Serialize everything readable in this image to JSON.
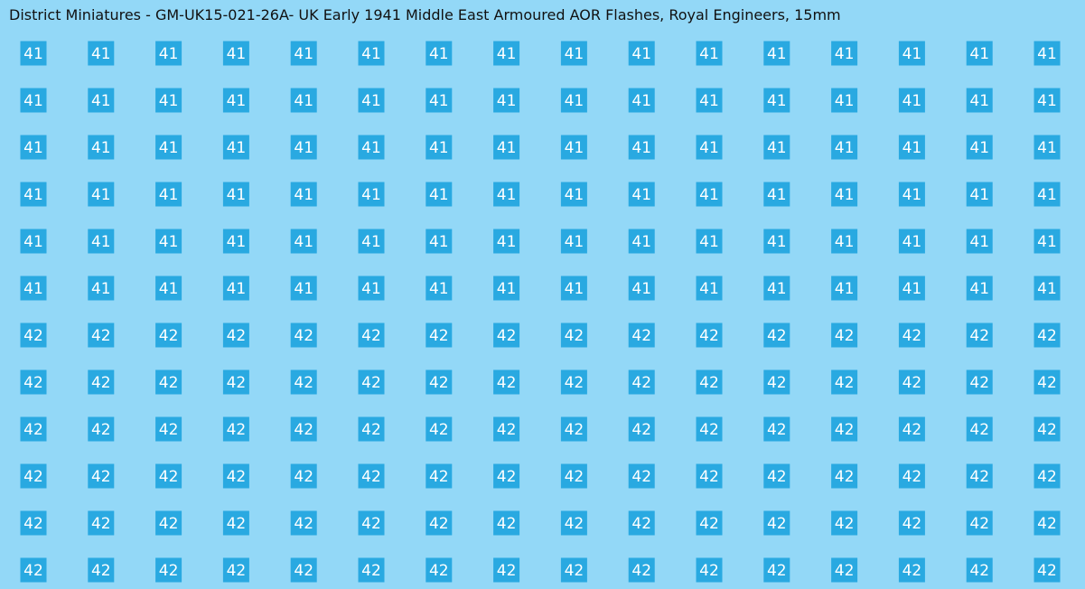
{
  "header": {
    "title": "District Miniatures - GM-UK15-021-26A- UK Early 1941 Middle East Armoured AOR Flashes, Royal Engineers, 15mm"
  },
  "sheet": {
    "rows": [
      [
        "41",
        "41",
        "41",
        "41",
        "41",
        "41",
        "41",
        "41",
        "41",
        "41",
        "41",
        "41",
        "41",
        "41",
        "41",
        "41"
      ],
      [
        "41",
        "41",
        "41",
        "41",
        "41",
        "41",
        "41",
        "41",
        "41",
        "41",
        "41",
        "41",
        "41",
        "41",
        "41",
        "41"
      ],
      [
        "41",
        "41",
        "41",
        "41",
        "41",
        "41",
        "41",
        "41",
        "41",
        "41",
        "41",
        "41",
        "41",
        "41",
        "41",
        "41"
      ],
      [
        "41",
        "41",
        "41",
        "41",
        "41",
        "41",
        "41",
        "41",
        "41",
        "41",
        "41",
        "41",
        "41",
        "41",
        "41",
        "41"
      ],
      [
        "41",
        "41",
        "41",
        "41",
        "41",
        "41",
        "41",
        "41",
        "41",
        "41",
        "41",
        "41",
        "41",
        "41",
        "41",
        "41"
      ],
      [
        "41",
        "41",
        "41",
        "41",
        "41",
        "41",
        "41",
        "41",
        "41",
        "41",
        "41",
        "41",
        "41",
        "41",
        "41",
        "41"
      ],
      [
        "42",
        "42",
        "42",
        "42",
        "42",
        "42",
        "42",
        "42",
        "42",
        "42",
        "42",
        "42",
        "42",
        "42",
        "42",
        "42"
      ],
      [
        "42",
        "42",
        "42",
        "42",
        "42",
        "42",
        "42",
        "42",
        "42",
        "42",
        "42",
        "42",
        "42",
        "42",
        "42",
        "42"
      ],
      [
        "42",
        "42",
        "42",
        "42",
        "42",
        "42",
        "42",
        "42",
        "42",
        "42",
        "42",
        "42",
        "42",
        "42",
        "42",
        "42"
      ],
      [
        "42",
        "42",
        "42",
        "42",
        "42",
        "42",
        "42",
        "42",
        "42",
        "42",
        "42",
        "42",
        "42",
        "42",
        "42",
        "42"
      ],
      [
        "42",
        "42",
        "42",
        "42",
        "42",
        "42",
        "42",
        "42",
        "42",
        "42",
        "42",
        "42",
        "42",
        "42",
        "42",
        "42"
      ],
      [
        "42",
        "42",
        "42",
        "42",
        "42",
        "42",
        "42",
        "42",
        "42",
        "42",
        "42",
        "42",
        "42",
        "42",
        "42",
        "42"
      ]
    ]
  }
}
